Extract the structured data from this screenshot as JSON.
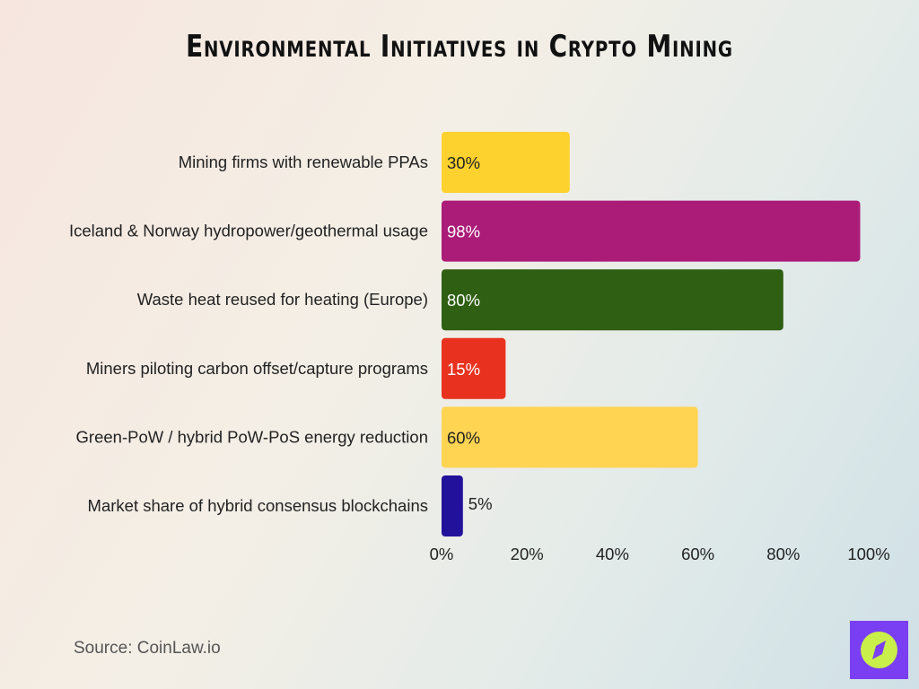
{
  "title": "Environmental Initiatives in Crypto Mining",
  "source": "Source: CoinLaw.io",
  "logo_icon": "compass-icon",
  "chart_data": {
    "type": "bar",
    "orientation": "horizontal",
    "title": "Environmental Initiatives in Crypto Mining",
    "categories": [
      "Mining firms with renewable PPAs",
      "Iceland & Norway hydropower/geothermal usage",
      "Waste heat reused for heating (Europe)",
      "Miners piloting carbon offset/capture programs",
      "Green-PoW / hybrid PoW-PoS energy reduction",
      "Market share of hybrid consensus blockchains"
    ],
    "values": [
      30,
      98,
      80,
      15,
      60,
      5
    ],
    "labels": [
      "30%",
      "98%",
      "80%",
      "15%",
      "60%",
      "5%"
    ],
    "colors": [
      "#fed22e",
      "#aa1c78",
      "#2f5f12",
      "#e8321f",
      "#fed452",
      "#22119a"
    ],
    "label_colors": [
      "#222222",
      "#ffffff",
      "#ffffff",
      "#ffffff",
      "#222222",
      "#222222"
    ],
    "xlim": [
      0,
      100
    ],
    "xticks": [
      "0%",
      "20%",
      "40%",
      "60%",
      "80%",
      "100%"
    ],
    "grid": false,
    "legend": "none"
  }
}
